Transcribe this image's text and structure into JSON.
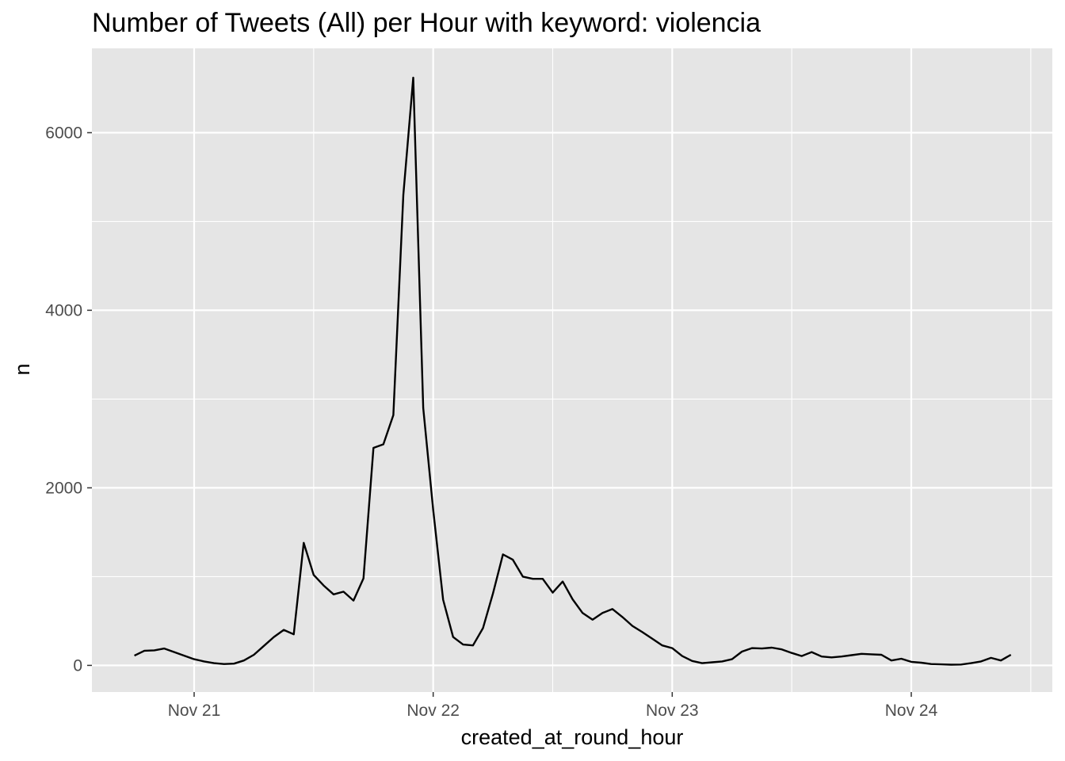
{
  "chart_data": {
    "type": "line",
    "title": "Number of Tweets (All) per Hour with keyword: violencia",
    "xlabel": "created_at_round_hour",
    "ylabel": "n",
    "x_tick_labels": [
      "Nov 21",
      "Nov 22",
      "Nov 23",
      "Nov 24"
    ],
    "y_ticks": [
      0,
      2000,
      4000,
      6000
    ],
    "ylim": [
      -300,
      6950
    ],
    "grid": true,
    "series": [
      {
        "points": [
          [
            "Nov 20 18:00",
            110
          ],
          [
            "Nov 20 19:00",
            165
          ],
          [
            "Nov 20 20:00",
            170
          ],
          [
            "Nov 20 21:00",
            190
          ],
          [
            "Nov 20 22:00",
            150
          ],
          [
            "Nov 20 23:00",
            110
          ],
          [
            "Nov 21 00:00",
            70
          ],
          [
            "Nov 21 01:00",
            45
          ],
          [
            "Nov 21 02:00",
            25
          ],
          [
            "Nov 21 03:00",
            15
          ],
          [
            "Nov 21 04:00",
            20
          ],
          [
            "Nov 21 05:00",
            55
          ],
          [
            "Nov 21 06:00",
            120
          ],
          [
            "Nov 21 07:00",
            220
          ],
          [
            "Nov 21 08:00",
            320
          ],
          [
            "Nov 21 09:00",
            400
          ],
          [
            "Nov 21 10:00",
            350
          ],
          [
            "Nov 21 11:00",
            1380
          ],
          [
            "Nov 21 12:00",
            1020
          ],
          [
            "Nov 21 13:00",
            900
          ],
          [
            "Nov 21 14:00",
            800
          ],
          [
            "Nov 21 15:00",
            830
          ],
          [
            "Nov 21 16:00",
            730
          ],
          [
            "Nov 21 17:00",
            980
          ],
          [
            "Nov 21 18:00",
            2450
          ],
          [
            "Nov 21 19:00",
            2490
          ],
          [
            "Nov 21 20:00",
            2820
          ],
          [
            "Nov 21 21:00",
            5300
          ],
          [
            "Nov 21 22:00",
            6620
          ],
          [
            "Nov 21 23:00",
            2900
          ],
          [
            "Nov 22 00:00",
            1750
          ],
          [
            "Nov 22 01:00",
            740
          ],
          [
            "Nov 22 02:00",
            320
          ],
          [
            "Nov 22 03:00",
            235
          ],
          [
            "Nov 22 04:00",
            225
          ],
          [
            "Nov 22 05:00",
            420
          ],
          [
            "Nov 22 06:00",
            810
          ],
          [
            "Nov 22 07:00",
            1250
          ],
          [
            "Nov 22 08:00",
            1190
          ],
          [
            "Nov 22 09:00",
            1000
          ],
          [
            "Nov 22 10:00",
            975
          ],
          [
            "Nov 22 11:00",
            975
          ],
          [
            "Nov 22 12:00",
            820
          ],
          [
            "Nov 22 13:00",
            945
          ],
          [
            "Nov 22 14:00",
            745
          ],
          [
            "Nov 22 15:00",
            590
          ],
          [
            "Nov 22 16:00",
            515
          ],
          [
            "Nov 22 17:00",
            590
          ],
          [
            "Nov 22 18:00",
            635
          ],
          [
            "Nov 22 19:00",
            545
          ],
          [
            "Nov 22 20:00",
            445
          ],
          [
            "Nov 22 21:00",
            375
          ],
          [
            "Nov 22 22:00",
            300
          ],
          [
            "Nov 22 23:00",
            225
          ],
          [
            "Nov 23 00:00",
            195
          ],
          [
            "Nov 23 01:00",
            105
          ],
          [
            "Nov 23 02:00",
            50
          ],
          [
            "Nov 23 03:00",
            25
          ],
          [
            "Nov 23 04:00",
            35
          ],
          [
            "Nov 23 05:00",
            45
          ],
          [
            "Nov 23 06:00",
            70
          ],
          [
            "Nov 23 07:00",
            155
          ],
          [
            "Nov 23 08:00",
            195
          ],
          [
            "Nov 23 09:00",
            190
          ],
          [
            "Nov 23 10:00",
            200
          ],
          [
            "Nov 23 11:00",
            180
          ],
          [
            "Nov 23 12:00",
            140
          ],
          [
            "Nov 23 13:00",
            105
          ],
          [
            "Nov 23 14:00",
            150
          ],
          [
            "Nov 23 15:00",
            100
          ],
          [
            "Nov 23 16:00",
            90
          ],
          [
            "Nov 23 17:00",
            100
          ],
          [
            "Nov 23 18:00",
            115
          ],
          [
            "Nov 23 19:00",
            130
          ],
          [
            "Nov 23 20:00",
            125
          ],
          [
            "Nov 23 21:00",
            120
          ],
          [
            "Nov 23 22:00",
            55
          ],
          [
            "Nov 23 23:00",
            75
          ],
          [
            "Nov 24 00:00",
            40
          ],
          [
            "Nov 24 01:00",
            30
          ],
          [
            "Nov 24 02:00",
            15
          ],
          [
            "Nov 24 03:00",
            12
          ],
          [
            "Nov 24 04:00",
            8
          ],
          [
            "Nov 24 05:00",
            10
          ],
          [
            "Nov 24 06:00",
            25
          ],
          [
            "Nov 24 07:00",
            45
          ],
          [
            "Nov 24 08:00",
            85
          ],
          [
            "Nov 24 09:00",
            55
          ],
          [
            "Nov 24 10:00",
            120
          ]
        ]
      }
    ]
  },
  "colors": {
    "panel_background": "#e5e5e5",
    "grid": "#ffffff",
    "line": "#000000",
    "tick_label": "#4d4d4d"
  }
}
